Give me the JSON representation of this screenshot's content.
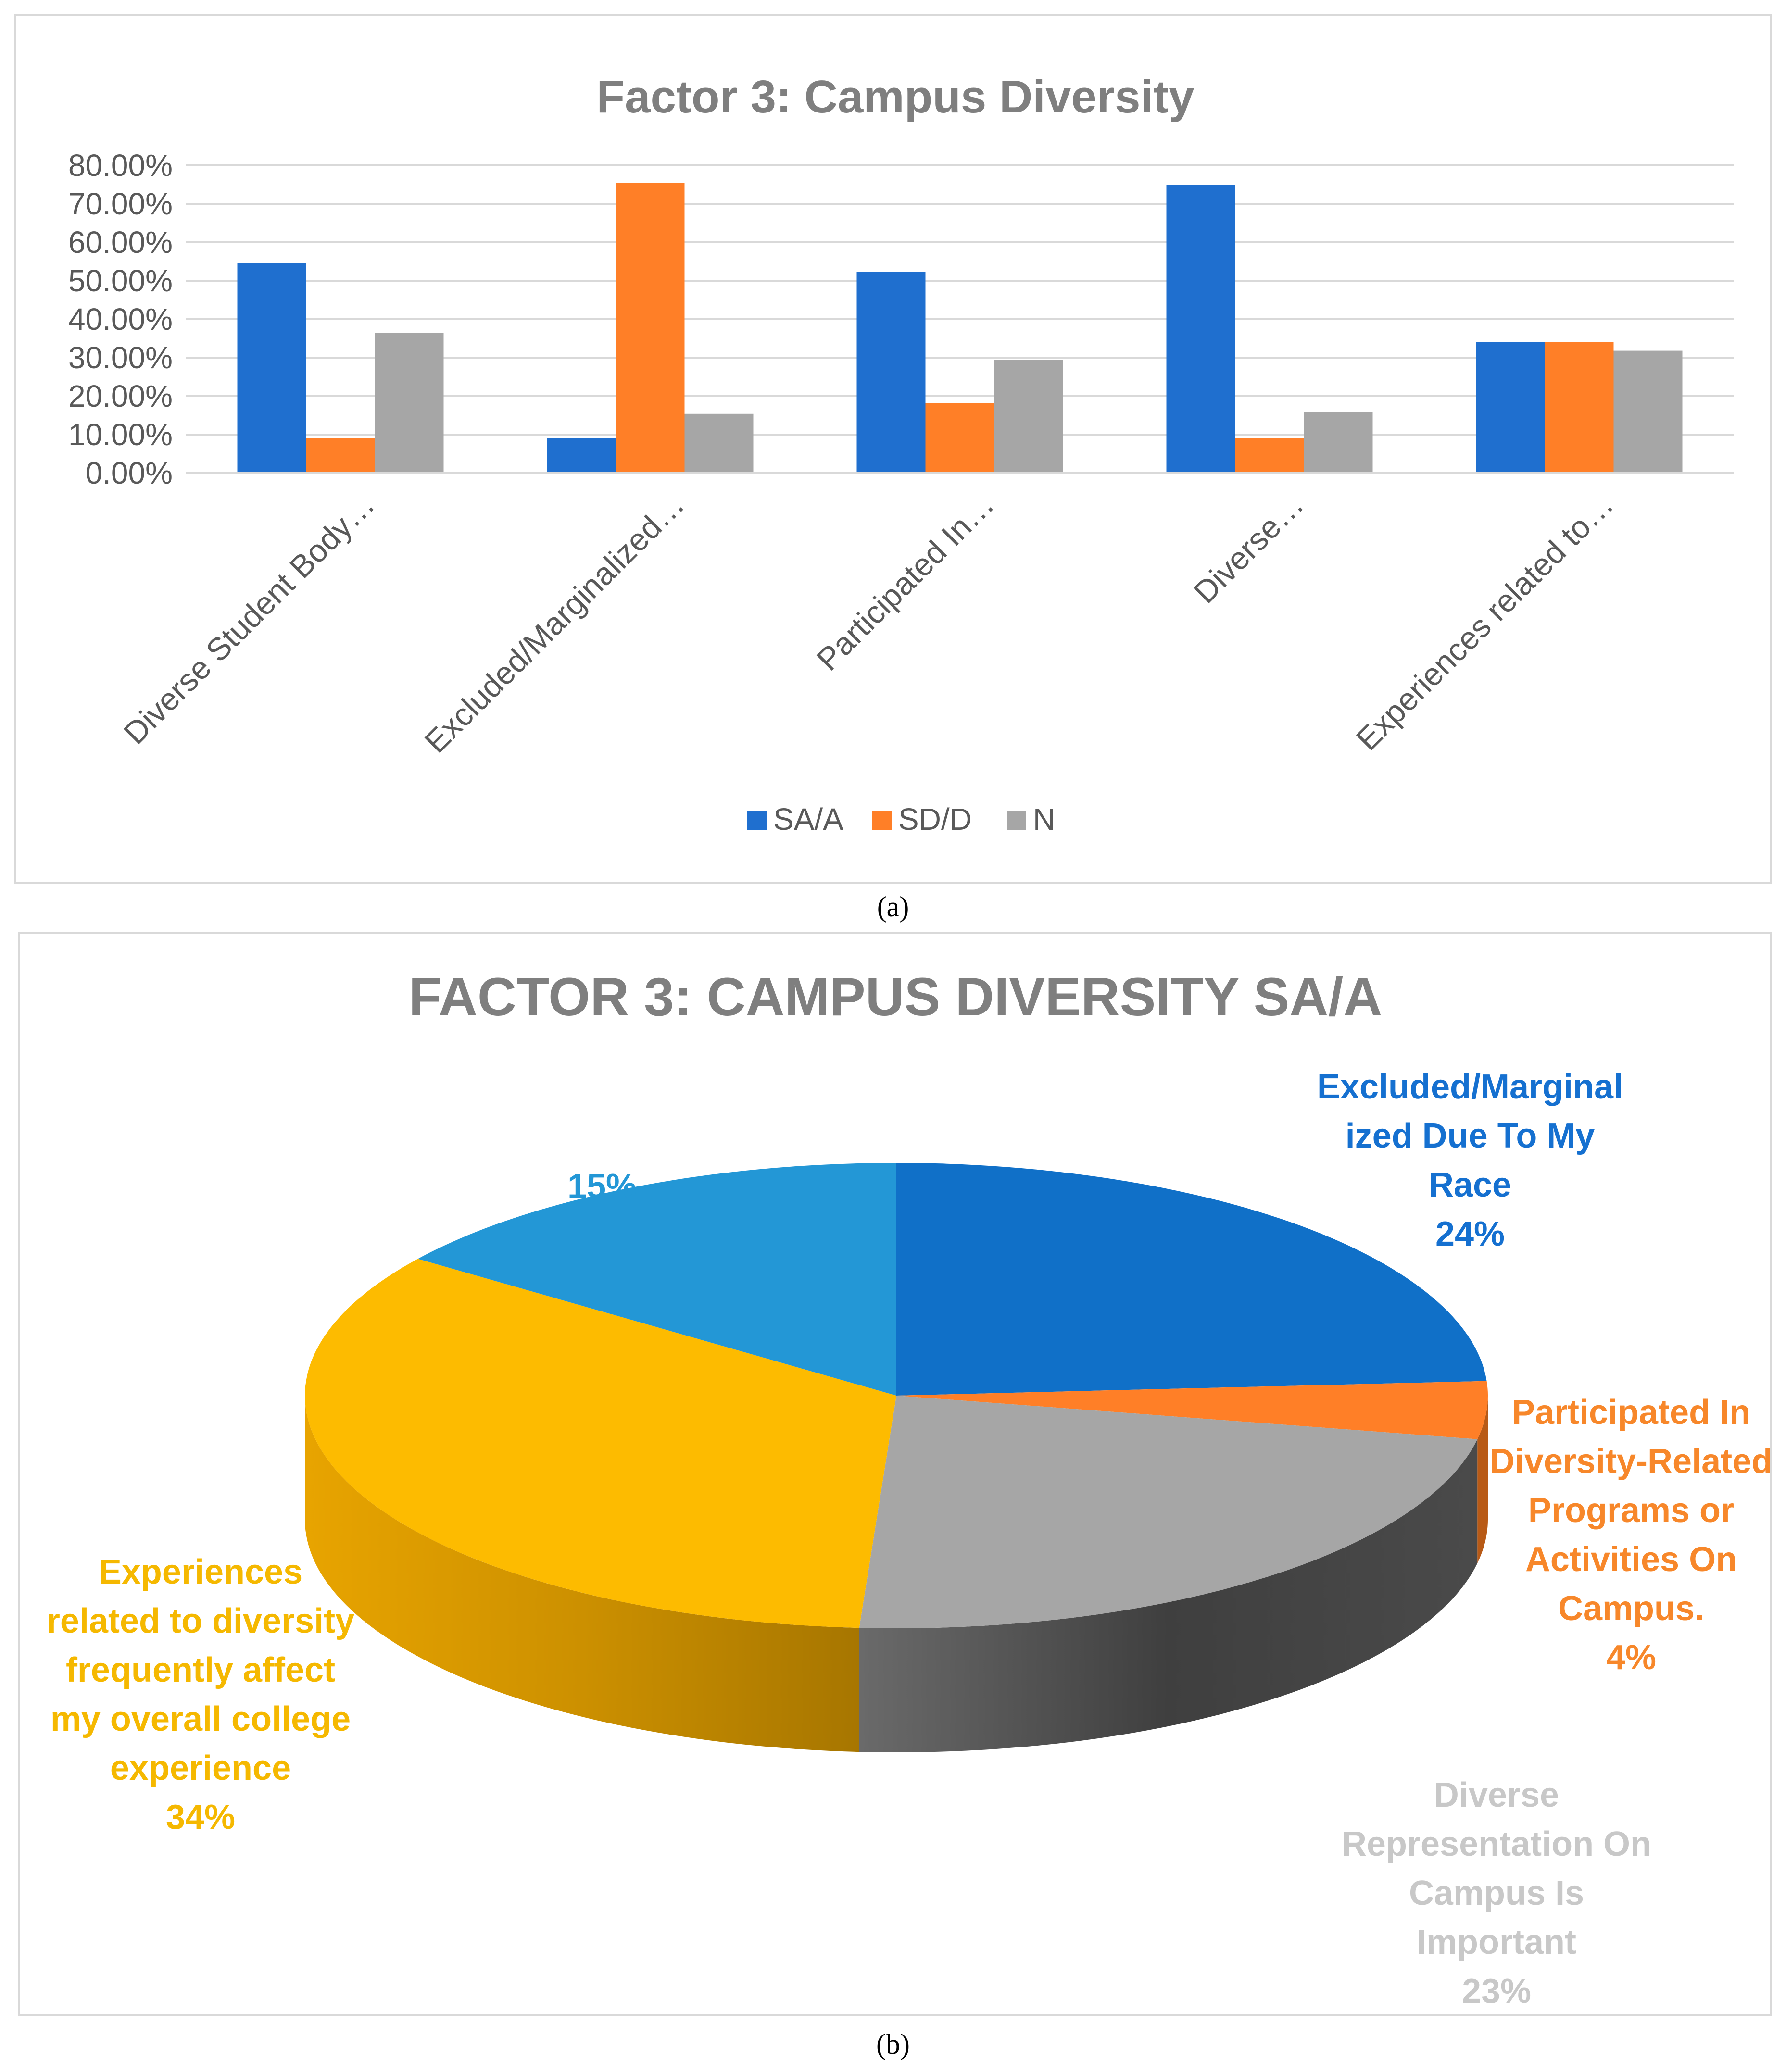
{
  "captions": {
    "a": "(a)",
    "b": "(b)"
  },
  "chart_data": [
    {
      "type": "bar",
      "title": "Factor 3: Campus Diversity",
      "categories": [
        "Diverse Student Body…",
        "Excluded/Marginalized…",
        "Participated In…",
        "Diverse…",
        "Experiences related to…"
      ],
      "series": [
        {
          "name": "SA/A",
          "color": "#1f6fcf",
          "values": [
            54.5,
            9.1,
            52.3,
            75.0,
            34.1
          ]
        },
        {
          "name": "SD/D",
          "color": "#ff7f27",
          "values": [
            9.1,
            75.5,
            18.2,
            9.1,
            34.1
          ]
        },
        {
          "name": "N",
          "color": "#a6a6a6",
          "values": [
            36.4,
            15.4,
            29.5,
            15.9,
            31.8
          ]
        }
      ],
      "ylim": [
        0,
        80
      ],
      "yticks": [
        "0.00%",
        "10.00%",
        "20.00%",
        "30.00%",
        "40.00%",
        "50.00%",
        "60.00%",
        "70.00%",
        "80.00%"
      ],
      "legend_position": "bottom",
      "grid": true
    },
    {
      "type": "pie",
      "title": "FACTOR 3: CAMPUS DIVERSITY SA/A",
      "slices": [
        {
          "label_lines": [
            "Excluded/Marginal",
            "ized Due To My",
            "Race"
          ],
          "value": 24,
          "percent_label": "24%",
          "color": "#1070c8",
          "label_color": "#1570d0"
        },
        {
          "label_lines": [
            "Participated In",
            "Diversity-Related",
            "Programs or",
            "Activities On",
            "Campus."
          ],
          "value": 4,
          "percent_label": "4%",
          "color": "#ff7f27",
          "label_color": "#f7872a"
        },
        {
          "label_lines": [
            "Diverse",
            "Representation On",
            "Campus Is",
            "Important"
          ],
          "value": 23,
          "percent_label": "23%",
          "color": "#a6a6a6",
          "label_color": "#c8c8c8"
        },
        {
          "label_lines": [
            "Experiences",
            "related to diversity",
            "frequently affect",
            "my overall college",
            "experience"
          ],
          "value": 34,
          "percent_label": "34%",
          "color": "#fdbb00",
          "label_color": "#f5b800"
        },
        {
          "label_lines": [],
          "value": 15,
          "percent_label": "15%",
          "color": "#2397d6",
          "label_color": "#2397d6"
        }
      ]
    }
  ]
}
